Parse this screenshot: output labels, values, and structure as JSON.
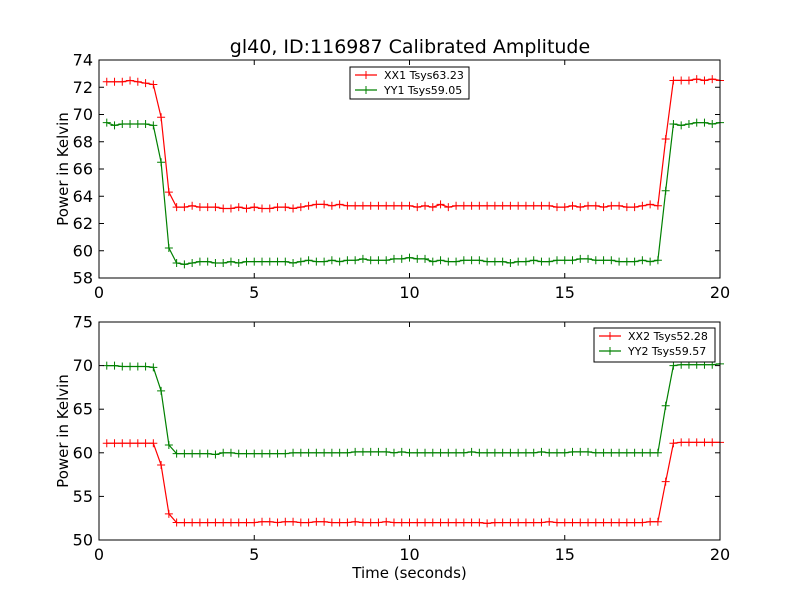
{
  "title": "gl40, ID:116987 Calibrated Amplitude",
  "chart_data": [
    {
      "type": "line",
      "title": "gl40, ID:116987 Calibrated Amplitude",
      "xlabel": "",
      "ylabel": "Power in Kelvin",
      "xlim": [
        0,
        20
      ],
      "ylim": [
        58,
        74
      ],
      "xticks": [
        0,
        5,
        10,
        15,
        20
      ],
      "yticks": [
        58,
        60,
        62,
        64,
        66,
        68,
        70,
        72,
        74
      ],
      "grid": false,
      "legend_position": "top-center",
      "series": [
        {
          "name": "XX1 Tsys63.23",
          "color": "#ff0000",
          "x": [
            0.25,
            0.5,
            0.75,
            1.0,
            1.25,
            1.5,
            1.75,
            2.0,
            2.25,
            2.5,
            2.75,
            3.0,
            3.25,
            3.5,
            3.75,
            4.0,
            4.25,
            4.5,
            4.75,
            5.0,
            5.25,
            5.5,
            5.75,
            6.0,
            6.25,
            6.5,
            6.75,
            7.0,
            7.25,
            7.5,
            7.75,
            8.0,
            8.25,
            8.5,
            8.75,
            9.0,
            9.25,
            9.5,
            9.75,
            10.0,
            10.25,
            10.5,
            10.75,
            11.0,
            11.25,
            11.5,
            11.75,
            12.0,
            12.25,
            12.5,
            12.75,
            13.0,
            13.25,
            13.5,
            13.75,
            14.0,
            14.25,
            14.5,
            14.75,
            15.0,
            15.25,
            15.5,
            15.75,
            16.0,
            16.25,
            16.5,
            16.75,
            17.0,
            17.25,
            17.5,
            17.75,
            18.0,
            18.25,
            18.5,
            18.75,
            19.0,
            19.25,
            19.5,
            19.75,
            20.0
          ],
          "values": [
            72.4,
            72.4,
            72.4,
            72.5,
            72.4,
            72.3,
            72.2,
            69.8,
            64.3,
            63.2,
            63.2,
            63.3,
            63.2,
            63.2,
            63.2,
            63.1,
            63.1,
            63.2,
            63.1,
            63.2,
            63.1,
            63.1,
            63.2,
            63.2,
            63.1,
            63.2,
            63.3,
            63.4,
            63.4,
            63.3,
            63.4,
            63.3,
            63.3,
            63.3,
            63.3,
            63.3,
            63.3,
            63.3,
            63.3,
            63.3,
            63.2,
            63.3,
            63.2,
            63.4,
            63.2,
            63.3,
            63.3,
            63.3,
            63.3,
            63.3,
            63.3,
            63.3,
            63.3,
            63.3,
            63.3,
            63.3,
            63.3,
            63.3,
            63.2,
            63.2,
            63.3,
            63.2,
            63.3,
            63.3,
            63.2,
            63.3,
            63.3,
            63.2,
            63.2,
            63.3,
            63.4,
            63.3,
            68.2,
            72.5,
            72.5,
            72.5,
            72.6,
            72.5,
            72.6,
            72.5
          ]
        },
        {
          "name": "YY1 Tsys59.05",
          "color": "#008000",
          "x": [
            0.25,
            0.5,
            0.75,
            1.0,
            1.25,
            1.5,
            1.75,
            2.0,
            2.25,
            2.5,
            2.75,
            3.0,
            3.25,
            3.5,
            3.75,
            4.0,
            4.25,
            4.5,
            4.75,
            5.0,
            5.25,
            5.5,
            5.75,
            6.0,
            6.25,
            6.5,
            6.75,
            7.0,
            7.25,
            7.5,
            7.75,
            8.0,
            8.25,
            8.5,
            8.75,
            9.0,
            9.25,
            9.5,
            9.75,
            10.0,
            10.25,
            10.5,
            10.75,
            11.0,
            11.25,
            11.5,
            11.75,
            12.0,
            12.25,
            12.5,
            12.75,
            13.0,
            13.25,
            13.5,
            13.75,
            14.0,
            14.25,
            14.5,
            14.75,
            15.0,
            15.25,
            15.5,
            15.75,
            16.0,
            16.25,
            16.5,
            16.75,
            17.0,
            17.25,
            17.5,
            17.75,
            18.0,
            18.25,
            18.5,
            18.75,
            19.0,
            19.25,
            19.5,
            19.75,
            20.0
          ],
          "values": [
            69.4,
            69.2,
            69.3,
            69.3,
            69.3,
            69.3,
            69.2,
            66.5,
            60.2,
            59.1,
            59.0,
            59.1,
            59.2,
            59.2,
            59.1,
            59.1,
            59.2,
            59.1,
            59.2,
            59.2,
            59.2,
            59.2,
            59.2,
            59.2,
            59.1,
            59.2,
            59.3,
            59.2,
            59.2,
            59.3,
            59.2,
            59.3,
            59.3,
            59.4,
            59.3,
            59.3,
            59.3,
            59.4,
            59.4,
            59.5,
            59.4,
            59.4,
            59.2,
            59.3,
            59.2,
            59.2,
            59.3,
            59.3,
            59.3,
            59.2,
            59.2,
            59.2,
            59.1,
            59.2,
            59.2,
            59.3,
            59.2,
            59.2,
            59.3,
            59.3,
            59.3,
            59.4,
            59.4,
            59.3,
            59.3,
            59.3,
            59.2,
            59.2,
            59.2,
            59.3,
            59.2,
            59.3,
            64.4,
            69.3,
            69.2,
            69.3,
            69.4,
            69.4,
            69.3,
            69.4
          ]
        }
      ]
    },
    {
      "type": "line",
      "title": "",
      "xlabel": "Time (seconds)",
      "ylabel": "Power in Kelvin",
      "xlim": [
        0,
        20
      ],
      "ylim": [
        50,
        75
      ],
      "xticks": [
        0,
        5,
        10,
        15,
        20
      ],
      "yticks": [
        50,
        55,
        60,
        65,
        70,
        75
      ],
      "grid": false,
      "legend_position": "top-right",
      "series": [
        {
          "name": "XX2 Tsys52.28",
          "color": "#ff0000",
          "x": [
            0.25,
            0.5,
            0.75,
            1.0,
            1.25,
            1.5,
            1.75,
            2.0,
            2.25,
            2.5,
            2.75,
            3.0,
            3.25,
            3.5,
            3.75,
            4.0,
            4.25,
            4.5,
            4.75,
            5.0,
            5.25,
            5.5,
            5.75,
            6.0,
            6.25,
            6.5,
            6.75,
            7.0,
            7.25,
            7.5,
            7.75,
            8.0,
            8.25,
            8.5,
            8.75,
            9.0,
            9.25,
            9.5,
            9.75,
            10.0,
            10.25,
            10.5,
            10.75,
            11.0,
            11.25,
            11.5,
            11.75,
            12.0,
            12.25,
            12.5,
            12.75,
            13.0,
            13.25,
            13.5,
            13.75,
            14.0,
            14.25,
            14.5,
            14.75,
            15.0,
            15.25,
            15.5,
            15.75,
            16.0,
            16.25,
            16.5,
            16.75,
            17.0,
            17.25,
            17.5,
            17.75,
            18.0,
            18.25,
            18.5,
            18.75,
            19.0,
            19.25,
            19.5,
            19.75,
            20.0
          ],
          "values": [
            61.1,
            61.1,
            61.1,
            61.1,
            61.1,
            61.1,
            61.1,
            58.6,
            53.0,
            52.0,
            52.0,
            52.0,
            52.0,
            52.0,
            52.0,
            52.0,
            52.0,
            52.0,
            52.0,
            52.0,
            52.1,
            52.1,
            52.0,
            52.1,
            52.1,
            52.0,
            52.0,
            52.1,
            52.1,
            52.0,
            52.0,
            52.0,
            52.1,
            52.0,
            52.0,
            52.0,
            52.1,
            52.0,
            52.0,
            52.0,
            52.0,
            52.0,
            52.0,
            52.0,
            52.0,
            52.0,
            52.0,
            52.0,
            52.0,
            51.9,
            52.0,
            52.0,
            52.0,
            52.0,
            52.0,
            52.0,
            52.0,
            52.1,
            52.0,
            52.0,
            52.0,
            52.0,
            52.0,
            52.0,
            52.0,
            52.0,
            52.0,
            52.0,
            52.0,
            52.0,
            52.1,
            52.1,
            56.7,
            61.1,
            61.2,
            61.2,
            61.2,
            61.2,
            61.2,
            61.2
          ]
        },
        {
          "name": "YY2 Tsys59.57",
          "color": "#008000",
          "x": [
            0.25,
            0.5,
            0.75,
            1.0,
            1.25,
            1.5,
            1.75,
            2.0,
            2.25,
            2.5,
            2.75,
            3.0,
            3.25,
            3.5,
            3.75,
            4.0,
            4.25,
            4.5,
            4.75,
            5.0,
            5.25,
            5.5,
            5.75,
            6.0,
            6.25,
            6.5,
            6.75,
            7.0,
            7.25,
            7.5,
            7.75,
            8.0,
            8.25,
            8.5,
            8.75,
            9.0,
            9.25,
            9.5,
            9.75,
            10.0,
            10.25,
            10.5,
            10.75,
            11.0,
            11.25,
            11.5,
            11.75,
            12.0,
            12.25,
            12.5,
            12.75,
            13.0,
            13.25,
            13.5,
            13.75,
            14.0,
            14.25,
            14.5,
            14.75,
            15.0,
            15.25,
            15.5,
            15.75,
            16.0,
            16.25,
            16.5,
            16.75,
            17.0,
            17.25,
            17.5,
            17.75,
            18.0,
            18.25,
            18.5,
            18.75,
            19.0,
            19.25,
            19.5,
            19.75,
            20.0
          ],
          "values": [
            70.0,
            70.0,
            69.9,
            69.9,
            69.9,
            69.9,
            69.8,
            67.1,
            60.9,
            59.9,
            59.9,
            59.9,
            59.9,
            59.9,
            59.8,
            60.0,
            60.0,
            59.9,
            59.9,
            59.9,
            59.9,
            59.9,
            59.9,
            59.9,
            60.0,
            60.0,
            60.0,
            60.0,
            60.0,
            60.0,
            60.0,
            60.0,
            60.1,
            60.1,
            60.1,
            60.1,
            60.1,
            60.0,
            60.1,
            60.0,
            60.0,
            60.0,
            60.0,
            60.0,
            60.0,
            60.0,
            60.0,
            60.1,
            60.0,
            60.0,
            60.0,
            60.0,
            60.0,
            60.0,
            60.0,
            60.0,
            60.1,
            60.0,
            60.0,
            60.0,
            60.1,
            60.1,
            60.1,
            60.0,
            60.0,
            60.0,
            60.0,
            60.0,
            60.0,
            60.0,
            60.0,
            60.0,
            65.4,
            70.0,
            70.1,
            70.1,
            70.1,
            70.1,
            70.1,
            70.2
          ]
        }
      ]
    }
  ]
}
